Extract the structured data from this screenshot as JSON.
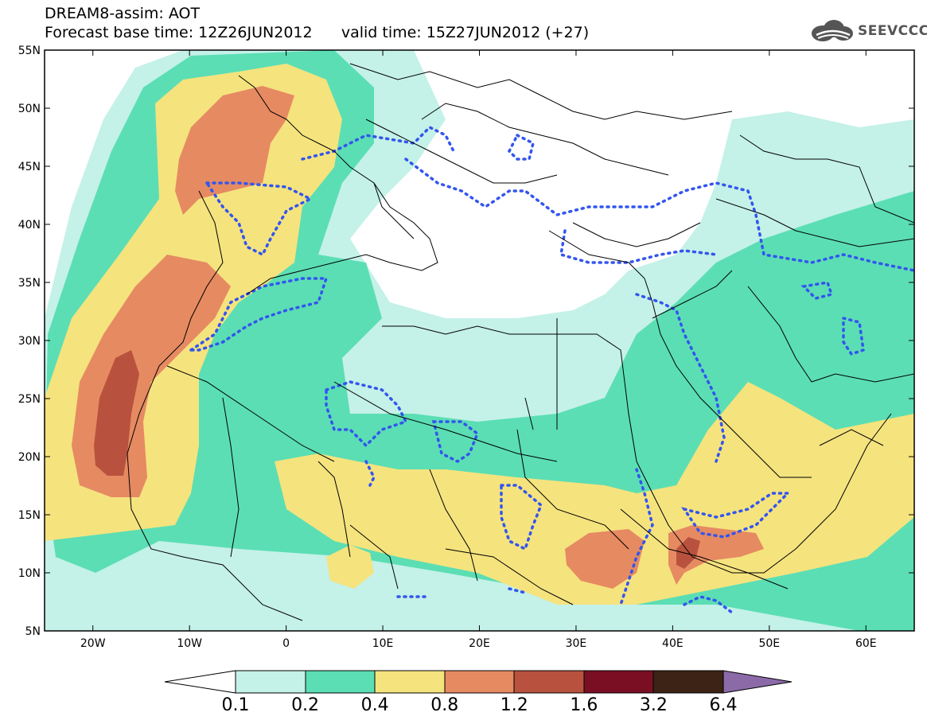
{
  "header": {
    "line1": "DREAM8-assim: AOT",
    "line2": "Forecast base time: 12Z26JUN2012      valid time: 15Z27JUN2012 (+27)"
  },
  "logo": {
    "text": "SEEVCCC",
    "icon": "cloud-logo-icon"
  },
  "map": {
    "lon_range": [
      -25,
      65
    ],
    "lat_range": [
      5,
      55
    ],
    "lat_ticks": [
      {
        "value": 55,
        "label": "55N"
      },
      {
        "value": 50,
        "label": "50N"
      },
      {
        "value": 45,
        "label": "45N"
      },
      {
        "value": 40,
        "label": "40N"
      },
      {
        "value": 35,
        "label": "35N"
      },
      {
        "value": 30,
        "label": "30N"
      },
      {
        "value": 25,
        "label": "25N"
      },
      {
        "value": 20,
        "label": "20N"
      },
      {
        "value": 15,
        "label": "15N"
      },
      {
        "value": 10,
        "label": "10N"
      },
      {
        "value": 5,
        "label": "5N"
      }
    ],
    "lon_ticks": [
      {
        "value": -20,
        "label": "20W"
      },
      {
        "value": -10,
        "label": "10W"
      },
      {
        "value": 0,
        "label": "0"
      },
      {
        "value": 10,
        "label": "10E"
      },
      {
        "value": 20,
        "label": "20E"
      },
      {
        "value": 30,
        "label": "30E"
      },
      {
        "value": 40,
        "label": "40E"
      },
      {
        "value": 50,
        "label": "50E"
      },
      {
        "value": 60,
        "label": "60E"
      }
    ]
  },
  "colorbar": {
    "levels": [
      "0.1",
      "0.2",
      "0.4",
      "0.8",
      "1.2",
      "1.6",
      "3.2",
      "6.4"
    ],
    "colors": {
      "under": "#ffffff",
      "c1": "#c4f1e8",
      "c2": "#5bdeb4",
      "c3": "#f5e37e",
      "c4": "#e68a62",
      "c5": "#b8523e",
      "c6": "#7a0f24",
      "c7": "#3d2315",
      "over": "#8c6aa8"
    }
  }
}
